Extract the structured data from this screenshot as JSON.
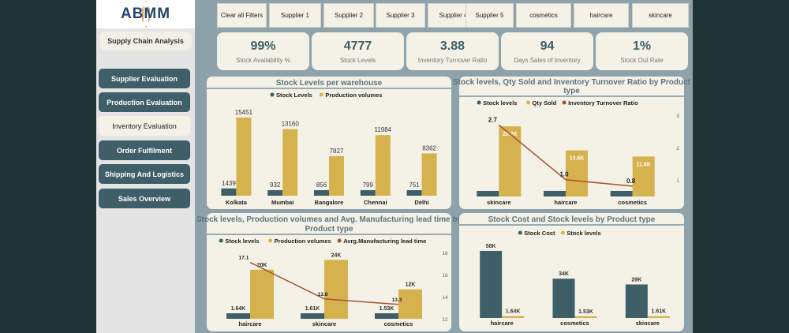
{
  "logo": "ABMM",
  "app_title": "Supply Chain Analysis",
  "nav": [
    "Supplier Evaluation",
    "Production Evaluation",
    "Inventory Evaluation",
    "Order Fulfilment",
    "Shipping And Logistics",
    "Sales Overview"
  ],
  "active_nav": "Inventory Evaluation",
  "filters": [
    "Clear all Filters",
    "Supplier 1",
    "Supplier 2",
    "Supplier 3",
    "Supplier 4",
    "Supplier 5",
    "cosmetics",
    "haircare",
    "skincare"
  ],
  "kpis": [
    {
      "value": "99%",
      "label": "Stock Availability %"
    },
    {
      "value": "4777",
      "label": "Stock Levels"
    },
    {
      "value": "3.88",
      "label": "Inventory Turnover Ratio"
    },
    {
      "value": "94",
      "label": "Days Sales of Inventory"
    },
    {
      "value": "1%",
      "label": "Stock Out Rate"
    }
  ],
  "colors": {
    "teal": "#3e5f68",
    "gold": "#d6b24e",
    "line": "#a8522e"
  },
  "chart_data": [
    {
      "type": "bar",
      "title": [
        "Stock Levels per warehouse"
      ],
      "categories": [
        "Kolkata",
        "Mumbai",
        "Bangalore",
        "Chennai",
        "Delhi"
      ],
      "series": [
        {
          "name": "Stock Levels",
          "values": [
            1439,
            932,
            856,
            799,
            751
          ],
          "labels": [
            "1439",
            "932",
            "856",
            "799",
            "751"
          ]
        },
        {
          "name": "Production volumes",
          "values": [
            15451,
            13160,
            7827,
            11984,
            8362
          ],
          "labels": [
            "15451",
            "13160",
            "7827",
            "11984",
            "8362"
          ]
        }
      ],
      "ylim": [
        0,
        17000
      ]
    },
    {
      "type": "bar+line",
      "title": [
        "Stock levels, Qty Sold and Inventory Turnover Ratio by Product",
        "type"
      ],
      "categories": [
        "skincare",
        "haircare",
        "cosmetics"
      ],
      "series": [
        {
          "name": "Stock levels",
          "values": [
            1608,
            1644,
            1525
          ],
          "labels": [
            "",
            "",
            ""
          ]
        },
        {
          "name": "Qty Sold",
          "values": [
            20700,
            13600,
            11800
          ],
          "labels": [
            "20.7K",
            "13.6K",
            "11.8K"
          ]
        }
      ],
      "line": {
        "name": "Inventory Turnover Ratio",
        "values": [
          2.7,
          1.0,
          0.8
        ],
        "labels": [
          "2.7",
          "1.0",
          "0.8"
        ]
      },
      "ylim": [
        0,
        24000
      ],
      "y2lim": [
        0.48,
        3
      ],
      "y2ticks": [
        "1",
        "2",
        "3"
      ]
    },
    {
      "type": "bar+line",
      "title": [
        "Stock levels, Production volumes and Avg. Manufacturing lead time by",
        "Product type"
      ],
      "categories": [
        "haircare",
        "skincare",
        "cosmetics"
      ],
      "series": [
        {
          "name": "Stock levels",
          "values": [
            1644,
            1608,
            1525
          ],
          "labels": [
            "1.64K",
            "1.61K",
            "1.53K"
          ]
        },
        {
          "name": "Production volumes",
          "values": [
            20000,
            24000,
            12000
          ],
          "labels": [
            "20K",
            "24K",
            "12K"
          ]
        }
      ],
      "line": {
        "name": "Avrg.Manufacturing lead time",
        "values": [
          17.1,
          13.8,
          13.3
        ],
        "labels": [
          "17.1",
          "13.8",
          "13.3"
        ]
      },
      "ylim": [
        0,
        27000
      ],
      "y2lim": [
        12,
        18
      ],
      "y2ticks": [
        "12",
        "14",
        "16",
        "18"
      ]
    },
    {
      "type": "bar",
      "title": [
        "Stock Cost and Stock levels by Product type"
      ],
      "categories": [
        "haircare",
        "cosmetics",
        "skincare"
      ],
      "series": [
        {
          "name": "Stock Cost",
          "values": [
            58000,
            34000,
            29000
          ],
          "labels": [
            "58K",
            "34K",
            "29K"
          ]
        },
        {
          "name": "Stock levels",
          "values": [
            1644,
            1525,
            1608
          ],
          "labels": [
            "1.64K",
            "1.53K",
            "1.61K"
          ]
        }
      ],
      "ylim": [
        0,
        60000
      ]
    }
  ]
}
